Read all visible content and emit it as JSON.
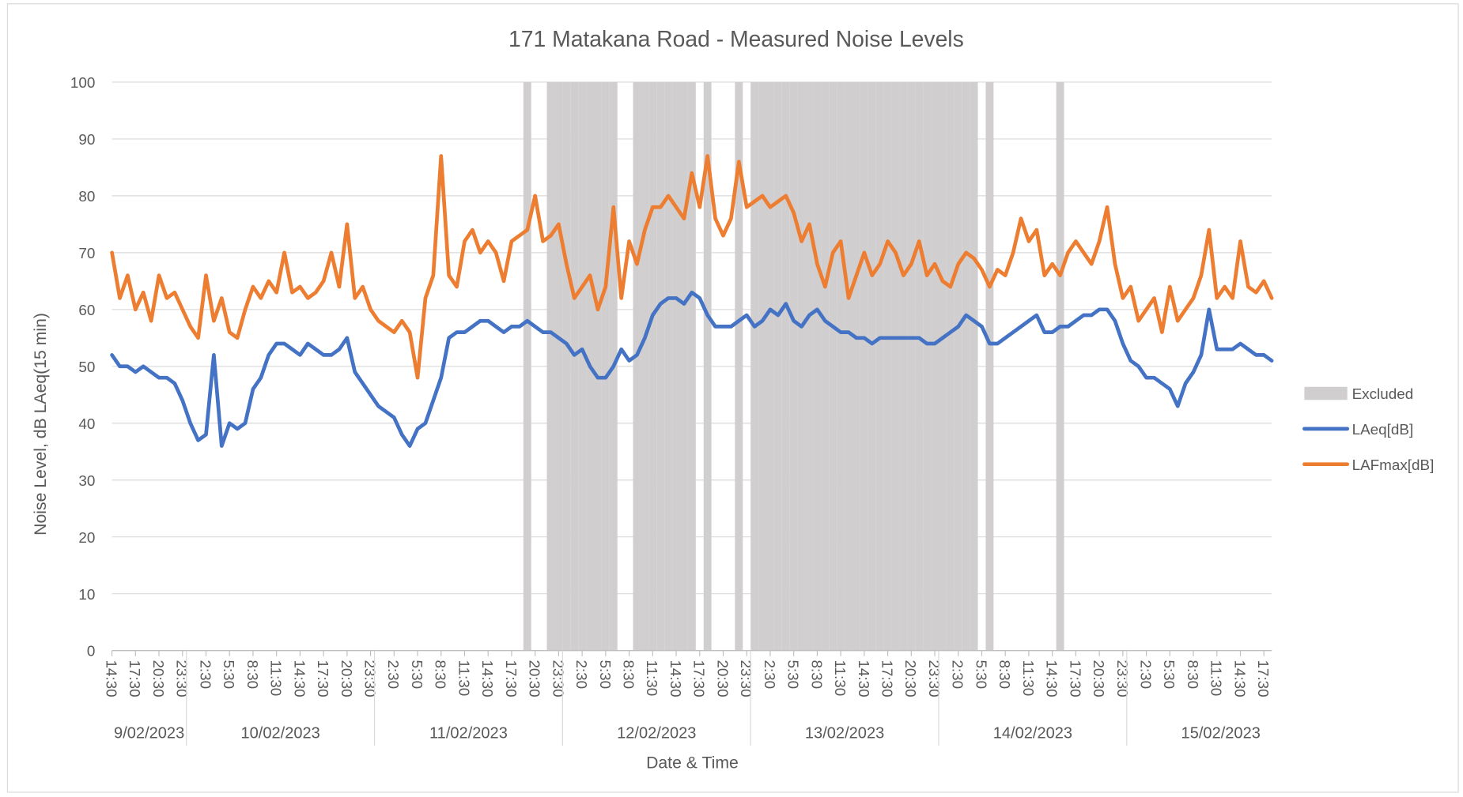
{
  "chart_data": {
    "type": "line",
    "title": "171 Matakana Road - Measured Noise Levels",
    "x_label": "Date & Time",
    "y_label": "Noise Level, dB LAeq(15 min)",
    "ylim": [
      0,
      100
    ],
    "yticks": [
      0,
      10,
      20,
      30,
      40,
      50,
      60,
      70,
      80,
      90,
      100
    ],
    "grid": true,
    "legend": "right",
    "date_groups": [
      "9/02/2023",
      "10/02/2023",
      "11/02/2023",
      "12/02/2023",
      "13/02/2023",
      "14/02/2023",
      "15/02/2023"
    ],
    "categories": [
      "14:30",
      null,
      null,
      "17:30",
      null,
      null,
      "20:30",
      null,
      null,
      "23:30",
      null,
      null,
      "2:30",
      null,
      null,
      "5:30",
      null,
      null,
      "8:30",
      null,
      null,
      "11:30",
      null,
      null,
      "14:30",
      null,
      null,
      "17:30",
      null,
      null,
      "20:30",
      null,
      null,
      "23:30",
      null,
      null,
      "2:30",
      null,
      null,
      "5:30",
      null,
      null,
      "8:30",
      null,
      null,
      "11:30",
      null,
      null,
      "14:30",
      null,
      null,
      "17:30",
      null,
      null,
      "20:30",
      null,
      null,
      "23:30",
      null,
      null,
      "2:30",
      null,
      null,
      "5:30",
      null,
      null,
      "8:30",
      null,
      null,
      "11:30",
      null,
      null,
      "14:30",
      null,
      null,
      "17:30",
      null,
      null,
      "20:30",
      null,
      null,
      "23:30",
      null,
      null,
      "2:30",
      null,
      null,
      "5:30",
      null,
      null,
      "8:30",
      null,
      null,
      "11:30",
      null,
      null,
      "14:30",
      null,
      null,
      "17:30",
      null,
      null,
      "20:30",
      null,
      null,
      "23:30",
      null,
      null,
      "2:30",
      null,
      null,
      "5:30",
      null,
      null,
      "8:30",
      null,
      null,
      "11:30",
      null,
      null,
      "14:30",
      null,
      null,
      "17:30",
      null,
      null,
      "20:30",
      null,
      null,
      "23:30",
      null,
      null,
      "2:30",
      null,
      null,
      "5:30",
      null,
      null,
      "8:30",
      null,
      null,
      "11:30",
      null,
      null,
      "14:30",
      null,
      null,
      "17:30",
      null
    ],
    "series": [
      {
        "name": "Excluded",
        "type": "bar",
        "color": "#d0cece",
        "values": [
          null,
          null,
          null,
          null,
          null,
          null,
          null,
          null,
          null,
          null,
          null,
          null,
          null,
          null,
          null,
          null,
          null,
          null,
          null,
          null,
          null,
          null,
          null,
          null,
          null,
          null,
          null,
          null,
          null,
          null,
          null,
          null,
          null,
          null,
          null,
          null,
          null,
          null,
          null,
          null,
          null,
          null,
          null,
          null,
          null,
          null,
          null,
          null,
          null,
          null,
          null,
          null,
          null,
          100,
          null,
          null,
          100,
          100,
          100,
          100,
          100,
          100,
          100,
          100,
          100,
          null,
          null,
          100,
          100,
          100,
          100,
          100,
          100,
          100,
          100,
          null,
          100,
          null,
          null,
          null,
          100,
          null,
          100,
          100,
          100,
          100,
          100,
          100,
          100,
          100,
          100,
          100,
          100,
          100,
          100,
          100,
          100,
          100,
          100,
          100,
          100,
          100,
          100,
          100,
          100,
          100,
          100,
          100,
          100,
          100,
          100,
          null,
          100,
          null,
          null,
          null,
          null,
          null,
          null,
          null,
          null,
          100,
          null,
          null,
          null,
          null,
          null,
          null,
          null,
          null,
          null,
          null,
          null,
          null,
          null,
          null,
          null,
          null,
          null,
          null,
          null,
          null,
          null,
          null,
          null,
          null,
          null,
          null,
          null
        ]
      },
      {
        "name": "LAeq[dB]",
        "type": "line",
        "color": "#4472c4",
        "values": [
          52,
          50,
          50,
          49,
          50,
          49,
          48,
          48,
          47,
          44,
          40,
          37,
          38,
          52,
          36,
          40,
          39,
          40,
          46,
          48,
          52,
          54,
          54,
          53,
          52,
          54,
          53,
          52,
          52,
          53,
          55,
          49,
          47,
          45,
          43,
          42,
          41,
          38,
          36,
          39,
          40,
          44,
          48,
          55,
          56,
          56,
          57,
          58,
          58,
          57,
          56,
          57,
          57,
          58,
          57,
          56,
          56,
          55,
          54,
          52,
          53,
          50,
          48,
          48,
          50,
          53,
          51,
          52,
          55,
          59,
          61,
          62,
          62,
          61,
          63,
          62,
          59,
          57,
          57,
          57,
          58,
          59,
          57,
          58,
          60,
          59,
          61,
          58,
          57,
          59,
          60,
          58,
          57,
          56,
          56,
          55,
          55,
          54,
          55,
          55,
          55,
          55,
          55,
          55,
          54,
          54,
          55,
          56,
          57,
          59,
          58,
          57,
          54,
          54,
          55,
          56,
          57,
          58,
          59,
          56,
          56,
          57,
          57,
          58,
          59,
          59,
          60,
          60,
          58,
          54,
          51,
          50,
          48,
          48,
          47,
          46,
          43,
          47,
          49,
          52,
          60,
          53,
          53,
          53,
          54,
          53,
          52,
          52,
          51
        ]
      },
      {
        "name": "LAFmax[dB]",
        "type": "line",
        "color": "#ed7d31",
        "values": [
          70,
          62,
          66,
          60,
          63,
          58,
          66,
          62,
          63,
          60,
          57,
          55,
          66,
          58,
          62,
          56,
          55,
          60,
          64,
          62,
          65,
          63,
          70,
          63,
          64,
          62,
          63,
          65,
          70,
          64,
          75,
          62,
          64,
          60,
          58,
          57,
          56,
          58,
          56,
          48,
          62,
          66,
          87,
          66,
          64,
          72,
          74,
          70,
          72,
          70,
          65,
          72,
          73,
          74,
          80,
          72,
          73,
          75,
          68,
          62,
          64,
          66,
          60,
          64,
          78,
          62,
          72,
          68,
          74,
          78,
          78,
          80,
          78,
          76,
          84,
          78,
          87,
          76,
          73,
          76,
          86,
          78,
          79,
          80,
          78,
          79,
          80,
          77,
          72,
          75,
          68,
          64,
          70,
          72,
          62,
          66,
          70,
          66,
          68,
          72,
          70,
          66,
          68,
          72,
          66,
          68,
          65,
          64,
          68,
          70,
          69,
          67,
          64,
          67,
          66,
          70,
          76,
          72,
          74,
          66,
          68,
          66,
          70,
          72,
          70,
          68,
          72,
          78,
          68,
          62,
          64,
          58,
          60,
          62,
          56,
          64,
          58,
          60,
          62,
          66,
          74,
          62,
          64,
          62,
          72,
          64,
          63,
          65,
          62
        ]
      }
    ]
  }
}
